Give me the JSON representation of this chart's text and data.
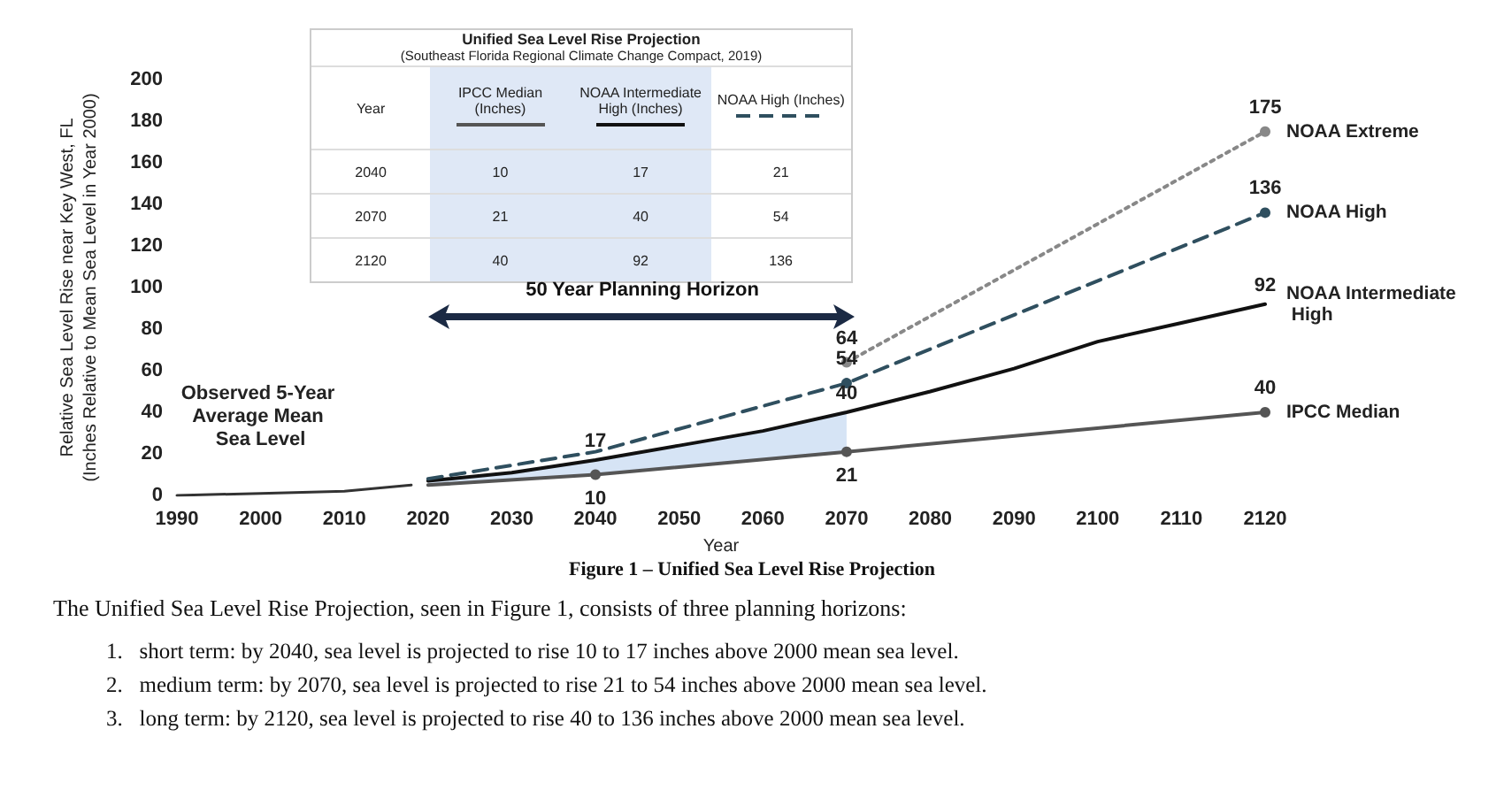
{
  "chart_data": {
    "type": "line",
    "xlabel": "Year",
    "ylabel": "Relative Sea Level Rise near Key West, FL\n(Inches Relative to Mean Sea Level in Year 2000)",
    "xlim": [
      1990,
      2120
    ],
    "xticks": [
      1990,
      2000,
      2010,
      2020,
      2030,
      2040,
      2050,
      2060,
      2070,
      2080,
      2090,
      2100,
      2110,
      2120
    ],
    "ylim": [
      0,
      200
    ],
    "yticks": [
      0,
      20,
      40,
      60,
      80,
      100,
      120,
      140,
      160,
      180,
      200
    ],
    "grid": false,
    "legend": false,
    "series": [
      {
        "name": "Observed 5-Year Average Mean Sea Level",
        "color": "#333333",
        "marker": "none",
        "x": [
          1990,
          2000,
          2010,
          2018
        ],
        "values": [
          0,
          1,
          2,
          5
        ]
      },
      {
        "name": "IPCC Median",
        "color": "#555555",
        "marker": "circle",
        "x": [
          2020,
          2040,
          2070,
          2120
        ],
        "values": [
          5,
          10,
          21,
          40
        ],
        "value_labels": [
          null,
          "10",
          "21",
          "40"
        ]
      },
      {
        "name": "NOAA Intermediate High",
        "color": "#111111",
        "marker": "none",
        "x": [
          2020,
          2030,
          2040,
          2050,
          2060,
          2070,
          2080,
          2090,
          2100,
          2110,
          2120
        ],
        "values": [
          7,
          11,
          17,
          24,
          31,
          40,
          50,
          61,
          74,
          83,
          92
        ],
        "lower": [
          5,
          7.5,
          10,
          13.5,
          17,
          21,
          null,
          null,
          null,
          null,
          null
        ],
        "upper": [
          7,
          11,
          17,
          24,
          31,
          40,
          null,
          null,
          null,
          null,
          null
        ],
        "value_labels": [
          null,
          null,
          "17",
          null,
          null,
          "40",
          null,
          null,
          null,
          null,
          "92"
        ]
      },
      {
        "name": "NOAA High",
        "color": "#2f4f5f",
        "marker": "circle",
        "line_style": "dashed",
        "x": [
          2020,
          2040,
          2070,
          2120
        ],
        "values": [
          8,
          21,
          54,
          136
        ],
        "value_labels": [
          null,
          null,
          "54",
          "136"
        ]
      },
      {
        "name": "NOAA Extreme",
        "color": "#888888",
        "marker": "circle",
        "line_style": "dotted",
        "x": [
          2070,
          2120
        ],
        "values": [
          64,
          175
        ],
        "value_labels": [
          "64",
          "175"
        ]
      }
    ],
    "annotations": [
      "Unified Sea Level Rise Projection",
      "(Southeast Florida Regional Climate Change Compact, 2019)",
      "Year",
      "IPCC Median (Inches)",
      "NOAA Intermediate High (Inches)",
      "NOAA High (Inches)",
      "2040",
      "10",
      "17",
      "21",
      "2070",
      "21",
      "40",
      "54",
      "2120",
      "40",
      "92",
      "136",
      "50 Year Planning Horizon",
      "Figure 1 – Unified Sea Level Rise Projection",
      "The Unified Sea Level Rise Projection, seen in Figure 1, consists of three planning horizons:",
      "1.   short term: by 2040, sea level is projected to rise 10 to 17 inches above 2000 mean sea level.",
      "2.   medium term: by 2070, sea level is projected to rise 21 to 54 inches above 2000 mean sea level.",
      "3.   long term: by 2120, sea level is projected to rise 40 to 136 inches above 2000 mean sea level."
    ]
  }
}
